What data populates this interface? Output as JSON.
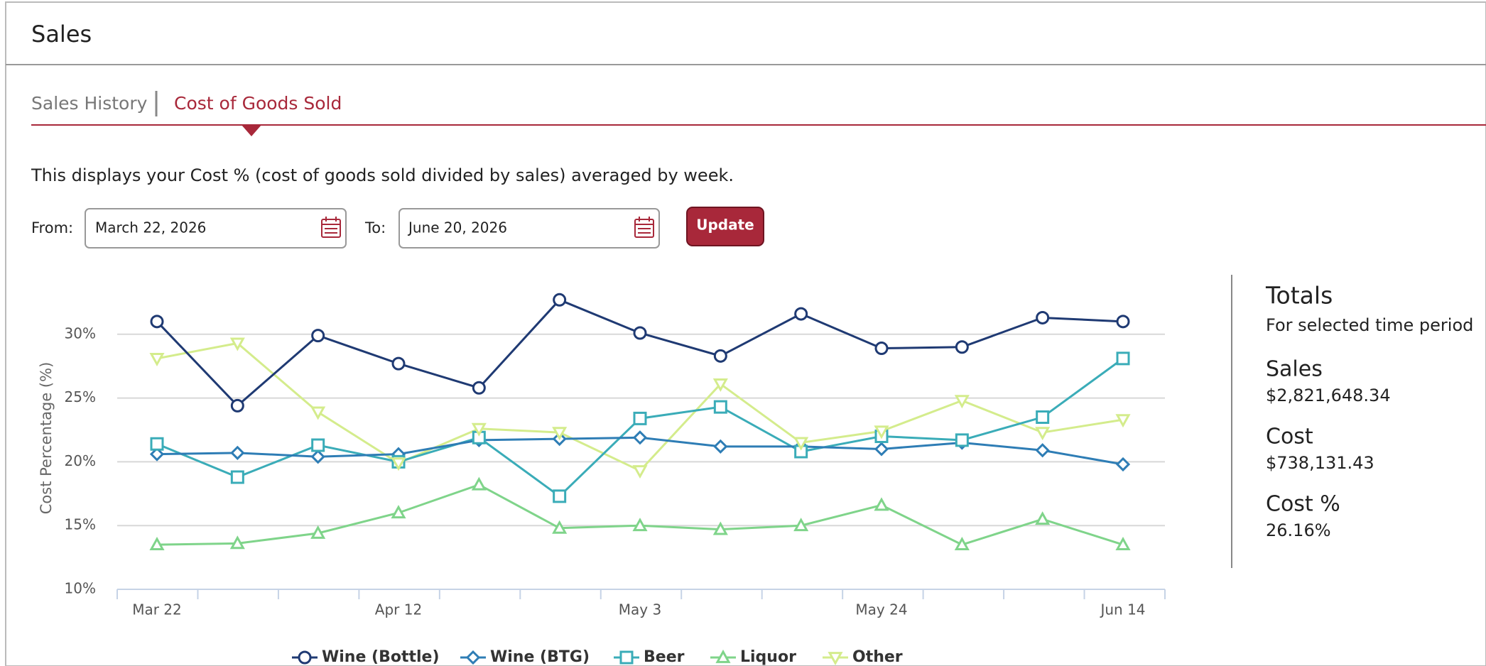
{
  "header": {
    "title": "Sales"
  },
  "tabs": [
    "Sales History",
    "Cost of Goods Sold"
  ],
  "description": "This displays your Cost % (cost of goods sold divided by sales) averaged by week.",
  "form": {
    "from_label": "From:",
    "from_value": "March 22, 2026",
    "to_label": "To:",
    "to_value": "June 20, 2026",
    "button": "Update"
  },
  "chart_data": {
    "type": "line",
    "y_label": "Cost Percentage (%)",
    "categories": [
      "Mar 22",
      null,
      null,
      "Apr 12",
      null,
      null,
      "May 3",
      null,
      null,
      "May 24",
      null,
      null,
      "Jun 14"
    ],
    "ylim": [
      10,
      35
    ],
    "yticks": [
      {
        "value": 10,
        "label": "10%"
      },
      {
        "value": 15,
        "label": "15%"
      },
      {
        "value": 20,
        "label": "20%"
      },
      {
        "value": 25,
        "label": "25%"
      },
      {
        "value": 30,
        "label": "30%"
      }
    ],
    "grid": true,
    "legend": "bottom",
    "series": [
      {
        "name": "Wine (Bottle)",
        "color": "#1f3a73",
        "marker": "circle",
        "values": [
          31.0,
          24.4,
          29.9,
          27.7,
          25.8,
          32.7,
          30.1,
          28.3,
          31.6,
          28.9,
          29.0,
          31.3,
          31.0
        ]
      },
      {
        "name": "Wine (BTG)",
        "color": "#2e7db5",
        "marker": "diamond",
        "values": [
          20.6,
          20.7,
          20.4,
          20.6,
          21.7,
          21.8,
          21.9,
          21.2,
          21.2,
          21.0,
          21.5,
          20.9,
          19.8
        ]
      },
      {
        "name": "Beer",
        "color": "#3aacb8",
        "marker": "square",
        "values": [
          21.4,
          18.8,
          21.3,
          20.0,
          21.9,
          17.3,
          23.4,
          24.3,
          20.8,
          22.0,
          21.7,
          23.5,
          28.1
        ]
      },
      {
        "name": "Liquor",
        "color": "#7fd48a",
        "marker": "triangle",
        "values": [
          13.5,
          13.6,
          14.4,
          16.0,
          18.2,
          14.8,
          15.0,
          14.7,
          15.0,
          16.6,
          13.5,
          15.5,
          13.5
        ]
      },
      {
        "name": "Other",
        "color": "#d4ec8c",
        "marker": "triangle-down",
        "values": [
          28.1,
          29.3,
          23.9,
          19.9,
          22.6,
          22.3,
          19.3,
          26.1,
          21.5,
          22.4,
          24.8,
          22.3,
          23.3
        ]
      }
    ]
  },
  "totals": {
    "title": "Totals",
    "subtitle": "For selected time period",
    "items": [
      {
        "label": "Sales",
        "value": "$2,821,648.34"
      },
      {
        "label": "Cost",
        "value": "$738,131.43"
      },
      {
        "label": "Cost %",
        "value": "26.16%"
      }
    ]
  }
}
